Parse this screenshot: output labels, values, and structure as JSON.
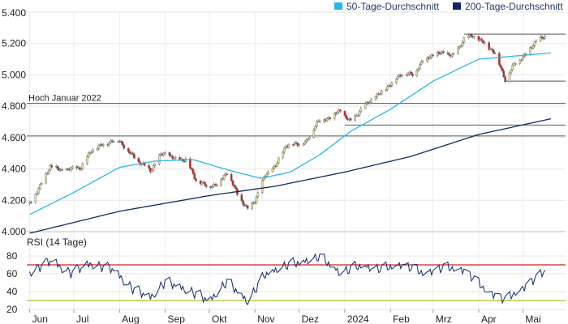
{
  "chart_data": [
    {
      "type": "candlestick",
      "legend": [
        {
          "name": "50-Tage-Durchschnitt",
          "color": "#29b6e8"
        },
        {
          "name": "200-Tage-Durchschnitt",
          "color": "#0d2a66"
        }
      ],
      "legend_position": "top-right",
      "ylim": [
        4000,
        5400
      ],
      "yticks": [
        "5.400",
        "5.200",
        "5.000",
        "4.800",
        "4.600",
        "4.400",
        "4.200",
        "4.000"
      ],
      "ytick_values": [
        5400,
        5200,
        5000,
        4800,
        4600,
        4400,
        4200,
        4000
      ],
      "xticks": [
        "Jun",
        "Jul",
        "Aug",
        "Sep",
        "Okt",
        "Nov",
        "Dez",
        "2024",
        "Feb",
        "Mrz",
        "Apr",
        "Mai"
      ],
      "candle_colors": {
        "up": "#e8e3a0",
        "down": "#d32020",
        "wick": "#555555"
      },
      "ohlc_anchors": [
        [
          "2023-06-01",
          4180
        ],
        [
          "2023-06-08",
          4290
        ],
        [
          "2023-06-15",
          4420
        ],
        [
          "2023-06-22",
          4390
        ],
        [
          "2023-06-29",
          4400
        ],
        [
          "2023-07-06",
          4410
        ],
        [
          "2023-07-13",
          4520
        ],
        [
          "2023-07-20",
          4550
        ],
        [
          "2023-07-27",
          4580
        ],
        [
          "2023-08-01",
          4580
        ],
        [
          "2023-08-08",
          4500
        ],
        [
          "2023-08-15",
          4440
        ],
        [
          "2023-08-22",
          4390
        ],
        [
          "2023-08-29",
          4490
        ],
        [
          "2023-09-01",
          4500
        ],
        [
          "2023-09-08",
          4460
        ],
        [
          "2023-09-15",
          4460
        ],
        [
          "2023-09-22",
          4330
        ],
        [
          "2023-09-29",
          4290
        ],
        [
          "2023-10-06",
          4300
        ],
        [
          "2023-10-13",
          4380
        ],
        [
          "2023-10-20",
          4240
        ],
        [
          "2023-10-27",
          4140
        ],
        [
          "2023-11-01",
          4200
        ],
        [
          "2023-11-08",
          4360
        ],
        [
          "2023-11-15",
          4420
        ],
        [
          "2023-11-22",
          4550
        ],
        [
          "2023-11-29",
          4560
        ],
        [
          "2023-12-06",
          4570
        ],
        [
          "2023-12-13",
          4700
        ],
        [
          "2023-12-20",
          4720
        ],
        [
          "2023-12-29",
          4770
        ],
        [
          "2024-01-05",
          4700
        ],
        [
          "2024-01-12",
          4780
        ],
        [
          "2024-01-19",
          4840
        ],
        [
          "2024-01-26",
          4890
        ],
        [
          "2024-02-02",
          4950
        ],
        [
          "2024-02-09",
          5010
        ],
        [
          "2024-02-16",
          5000
        ],
        [
          "2024-02-23",
          5090
        ],
        [
          "2024-03-01",
          5130
        ],
        [
          "2024-03-08",
          5140
        ],
        [
          "2024-03-15",
          5120
        ],
        [
          "2024-03-22",
          5230
        ],
        [
          "2024-03-28",
          5250
        ],
        [
          "2024-04-05",
          5200
        ],
        [
          "2024-04-12",
          5140
        ],
        [
          "2024-04-19",
          4970
        ],
        [
          "2024-04-26",
          5080
        ],
        [
          "2024-05-03",
          5130
        ],
        [
          "2024-05-10",
          5220
        ],
        [
          "2024-05-16",
          5240
        ]
      ],
      "sma50": [
        [
          "2023-06-01",
          4110
        ],
        [
          "2023-07-01",
          4250
        ],
        [
          "2023-08-01",
          4410
        ],
        [
          "2023-08-25",
          4450
        ],
        [
          "2023-09-20",
          4460
        ],
        [
          "2023-10-15",
          4390
        ],
        [
          "2023-11-05",
          4340
        ],
        [
          "2023-11-25",
          4380
        ],
        [
          "2023-12-15",
          4490
        ],
        [
          "2024-01-05",
          4640
        ],
        [
          "2024-02-01",
          4780
        ],
        [
          "2024-03-01",
          4960
        ],
        [
          "2024-04-01",
          5100
        ],
        [
          "2024-05-20",
          5140
        ]
      ],
      "sma200": [
        [
          "2023-06-01",
          3990
        ],
        [
          "2023-08-01",
          4130
        ],
        [
          "2023-10-01",
          4230
        ],
        [
          "2023-11-15",
          4290
        ],
        [
          "2024-01-01",
          4380
        ],
        [
          "2024-02-15",
          4480
        ],
        [
          "2024-04-01",
          4620
        ],
        [
          "2024-05-20",
          4720
        ]
      ],
      "horizontal_lines": [
        {
          "value": 5260,
          "from": "2024-03-22",
          "to": "end"
        },
        {
          "value": 4960,
          "from": "2024-04-19",
          "to": "end"
        },
        {
          "value": 4818,
          "from": "start",
          "to": "end",
          "label": "Hoch Januar 2022"
        },
        {
          "value": 4680,
          "from": "2024-01-01",
          "to": "end"
        },
        {
          "value": 4610,
          "from": "start",
          "to": "end"
        }
      ]
    },
    {
      "type": "line",
      "title": "RSI (14 Tage)",
      "ylim": [
        20,
        80
      ],
      "yticks": [
        "80",
        "60",
        "40",
        "20"
      ],
      "ytick_values": [
        80,
        60,
        40,
        20
      ],
      "reference_lines": [
        {
          "value": 70,
          "color": "#d32020"
        },
        {
          "value": 30,
          "color": "#b5be2a"
        }
      ],
      "line_color": "#0d2a66",
      "rsi_anchors": [
        [
          "2023-06-01",
          63
        ],
        [
          "2023-06-15",
          75
        ],
        [
          "2023-06-29",
          62
        ],
        [
          "2023-07-13",
          72
        ],
        [
          "2023-07-27",
          66
        ],
        [
          "2023-08-10",
          44
        ],
        [
          "2023-08-22",
          34
        ],
        [
          "2023-09-01",
          52
        ],
        [
          "2023-09-20",
          40
        ],
        [
          "2023-10-01",
          30
        ],
        [
          "2023-10-13",
          52
        ],
        [
          "2023-10-27",
          30
        ],
        [
          "2023-11-08",
          60
        ],
        [
          "2023-11-22",
          70
        ],
        [
          "2023-12-01",
          73
        ],
        [
          "2023-12-15",
          80
        ],
        [
          "2023-12-29",
          62
        ],
        [
          "2024-01-12",
          70
        ],
        [
          "2024-01-26",
          66
        ],
        [
          "2024-02-09",
          72
        ],
        [
          "2024-02-23",
          62
        ],
        [
          "2024-03-08",
          68
        ],
        [
          "2024-03-22",
          66
        ],
        [
          "2024-04-05",
          44
        ],
        [
          "2024-04-19",
          32
        ],
        [
          "2024-05-03",
          48
        ],
        [
          "2024-05-16",
          64
        ]
      ]
    }
  ]
}
